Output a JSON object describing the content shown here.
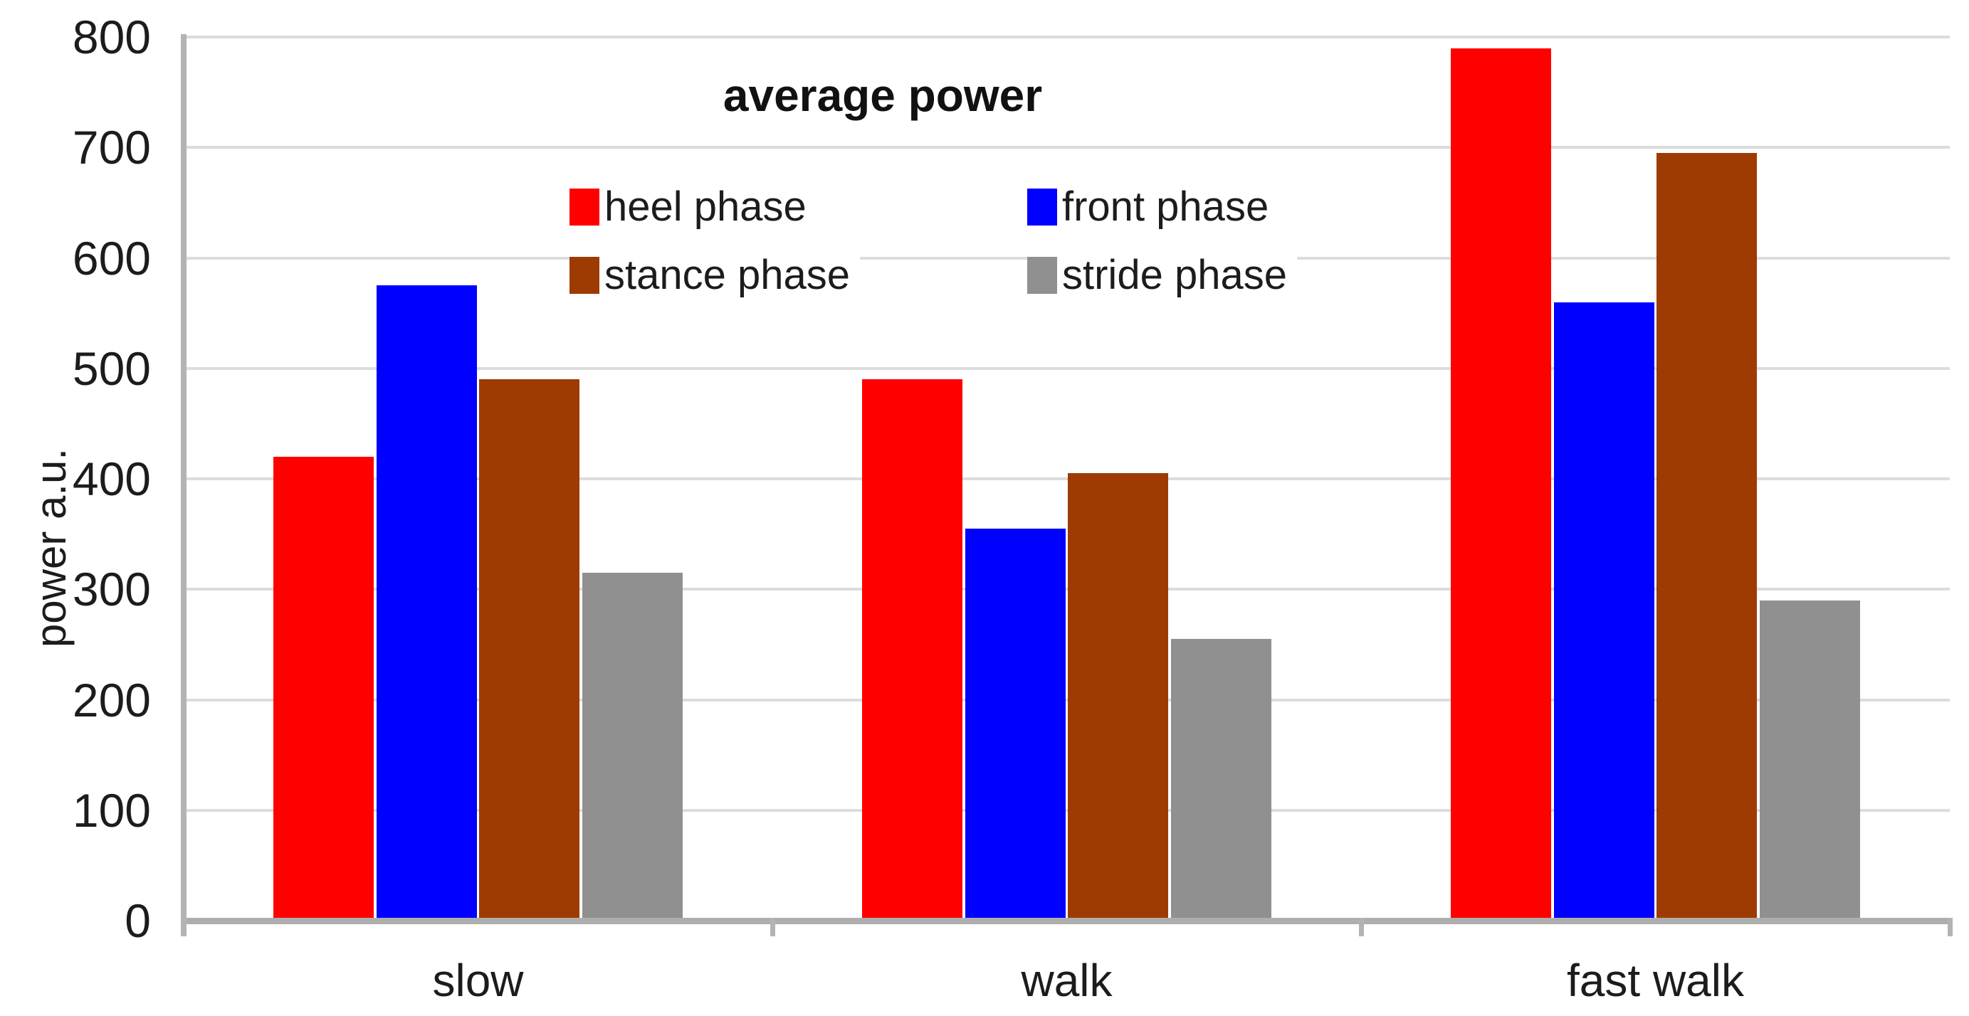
{
  "chart_data": {
    "type": "bar",
    "title": "average power",
    "ylabel": "power a.u.",
    "xlabel": "",
    "categories": [
      "slow",
      "walk",
      "fast walk"
    ],
    "series": [
      {
        "name": "heel phase",
        "color": "#FF0000",
        "values": [
          420,
          490,
          790
        ]
      },
      {
        "name": "front phase",
        "color": "#0000FF",
        "values": [
          575,
          355,
          560
        ]
      },
      {
        "name": "stance phase",
        "color": "#9D3B03",
        "values": [
          490,
          405,
          695
        ]
      },
      {
        "name": "stride phase",
        "color": "#909090",
        "values": [
          315,
          255,
          290
        ]
      }
    ],
    "ylim": [
      0,
      800
    ],
    "ytick_step": 100,
    "yticks": [
      "0",
      "100",
      "200",
      "300",
      "400",
      "500",
      "600",
      "700",
      "800"
    ],
    "grid": true,
    "legend_position": "top-center-two-rows"
  },
  "style_colors": {
    "gridline": "#dcdcdc",
    "axis_line": "#b3b3b3",
    "text": "#1c1c1c",
    "background": "#ffffff"
  }
}
